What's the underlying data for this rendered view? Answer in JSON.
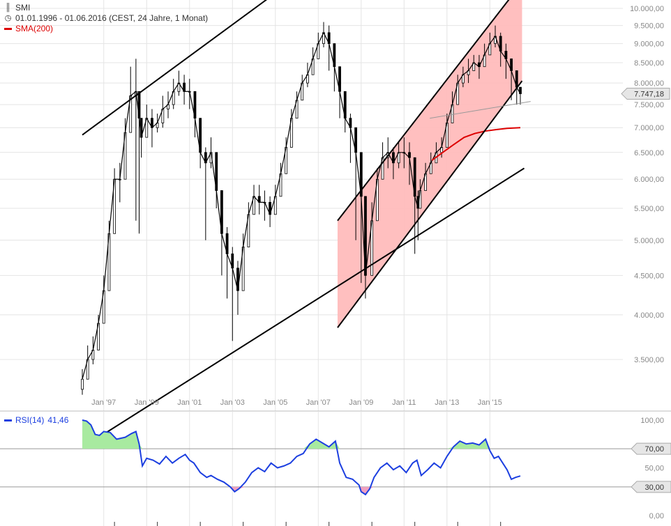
{
  "legend": {
    "symbol": "SMI",
    "range": "01.01.1996 - 01.06.2016 (CEST, 24 Jahre, 1 Monat)",
    "sma_label": "SMA(200)",
    "rsi_label": "RSI(14)",
    "rsi_value": "41,46"
  },
  "icons": {
    "candles": "candlestick-icon",
    "clock": "clock-icon"
  },
  "colors": {
    "candle": "#000000",
    "sma": "#dd0000",
    "rsi": "#1c3fe0",
    "channel_fill": "#ffbcbc",
    "rsi_overbought_fill": "#a8eaa0",
    "rsi_oversold_fill": "#f0a0c0",
    "grid": "#e4e4e4",
    "axis_text": "#888888"
  },
  "chart_data": [
    {
      "type": "candlestick",
      "title": "SMI",
      "scale": "log",
      "ylim": [
        3150,
        10150
      ],
      "xlim": [
        1996.0,
        2016.5
      ],
      "y_ticks": [
        3500,
        4000,
        4500,
        5000,
        5500,
        6000,
        6500,
        7000,
        7500,
        8000,
        8500,
        9000,
        9500,
        10000
      ],
      "y_tick_labels": [
        "3.500,00",
        "4.000,00",
        "4.500,00",
        "5.000,00",
        "5.500,00",
        "6.000,00",
        "6.500,00",
        "7.000,00",
        "7.500,00",
        "8.000,00",
        "8.500,00",
        "9.000,00",
        "9.500,00",
        "10.000,00"
      ],
      "x_ticks": [
        1997,
        1999,
        2001,
        2003,
        2005,
        2007,
        2009,
        2011,
        2013,
        2015
      ],
      "x_tick_labels": [
        "Jan '97",
        "Jan '99",
        "Jan '01",
        "Jan '03",
        "Jan '05",
        "Jan '07",
        "Jan '09",
        "Jan '11",
        "Jan '13",
        "Jan '15"
      ],
      "last_value": 7747.18,
      "last_value_label": "7.747,18",
      "series": [
        {
          "kind": "candles",
          "x": [
            1996.0,
            1996.25,
            1996.5,
            1996.75,
            1997.0,
            1997.25,
            1997.5,
            1997.75,
            1998.0,
            1998.25,
            1998.5,
            1998.65,
            1998.75,
            1999.0,
            1999.25,
            1999.5,
            1999.75,
            2000.0,
            2000.25,
            2000.5,
            2000.75,
            2001.0,
            2001.25,
            2001.5,
            2001.75,
            2002.0,
            2002.25,
            2002.5,
            2002.75,
            2003.0,
            2003.25,
            2003.5,
            2003.75,
            2004.0,
            2004.25,
            2004.5,
            2004.75,
            2005.0,
            2005.25,
            2005.5,
            2005.75,
            2006.0,
            2006.25,
            2006.5,
            2006.75,
            2007.0,
            2007.25,
            2007.5,
            2007.75,
            2008.0,
            2008.25,
            2008.5,
            2008.75,
            2009.0,
            2009.2,
            2009.5,
            2009.75,
            2010.0,
            2010.25,
            2010.5,
            2010.75,
            2011.0,
            2011.25,
            2011.5,
            2011.65,
            2011.75,
            2012.0,
            2012.25,
            2012.5,
            2012.75,
            2013.0,
            2013.25,
            2013.5,
            2013.75,
            2014.0,
            2014.25,
            2014.5,
            2014.75,
            2015.0,
            2015.25,
            2015.5,
            2015.75,
            2016.0,
            2016.25,
            2016.42
          ],
          "close": [
            3300,
            3500,
            3600,
            3900,
            4300,
            5100,
            6000,
            6000,
            6900,
            7700,
            7800,
            7200,
            6800,
            7200,
            7000,
            7100,
            7400,
            7500,
            7800,
            8000,
            7800,
            7800,
            7200,
            6500,
            6300,
            6500,
            5800,
            5100,
            4800,
            4600,
            4300,
            4900,
            5400,
            5700,
            5600,
            5600,
            5400,
            5700,
            6100,
            6600,
            7200,
            7600,
            8000,
            8200,
            8600,
            9000,
            9300,
            9000,
            8400,
            7800,
            7200,
            7000,
            6500,
            5700,
            4500,
            5300,
            6000,
            6400,
            6500,
            6300,
            6500,
            6500,
            6400,
            5700,
            5500,
            5800,
            6100,
            6300,
            6500,
            6600,
            7100,
            7500,
            8000,
            8200,
            8300,
            8500,
            8400,
            8700,
            9000,
            9200,
            8800,
            8600,
            8300,
            7900,
            7747
          ],
          "high": [
            3400,
            3650,
            3750,
            4000,
            4500,
            5300,
            6200,
            6300,
            7200,
            8400,
            8600,
            7500,
            7200,
            7500,
            7400,
            7300,
            7700,
            7800,
            8100,
            8300,
            8200,
            8100,
            7500,
            6800,
            6600,
            6800,
            6300,
            5400,
            5200,
            4900,
            4700,
            5100,
            5600,
            5900,
            5900,
            5800,
            5700,
            5900,
            6300,
            6800,
            7400,
            7800,
            8200,
            8500,
            8900,
            9300,
            9600,
            9500,
            8800,
            8200,
            7600,
            7300,
            6800,
            6000,
            5000,
            5600,
            6200,
            6700,
            6800,
            6600,
            6700,
            6800,
            6700,
            6200,
            5800,
            6000,
            6300,
            6500,
            6700,
            6800,
            7300,
            7800,
            8200,
            8400,
            8600,
            8700,
            8700,
            9000,
            9300,
            9500,
            9300,
            9000,
            8600,
            8200,
            7900
          ],
          "low": [
            3150,
            3350,
            3450,
            3700,
            4100,
            4900,
            5700,
            5600,
            6500,
            7100,
            5300,
            5100,
            6400,
            6800,
            6600,
            6900,
            7000,
            7200,
            7400,
            7700,
            7500,
            7400,
            6800,
            6200,
            5000,
            6200,
            5500,
            4500,
            4200,
            3700,
            4000,
            4600,
            5100,
            5400,
            5400,
            5300,
            5200,
            5500,
            5900,
            6400,
            6900,
            7300,
            7700,
            7900,
            8300,
            8700,
            8900,
            8300,
            7800,
            7200,
            6900,
            6300,
            5000,
            4400,
            4200,
            4900,
            5700,
            6100,
            6200,
            6000,
            6200,
            6200,
            5900,
            4800,
            5000,
            5600,
            5900,
            6100,
            6300,
            6400,
            6900,
            7200,
            7800,
            7900,
            8000,
            8300,
            8100,
            8400,
            8700,
            8900,
            8400,
            8100,
            7600,
            7500,
            7500
          ]
        },
        {
          "kind": "line",
          "name": "SMA(200)",
          "x": [
            2012.3,
            2012.8,
            2013.3,
            2013.8,
            2014.3,
            2014.8,
            2015.3,
            2015.8,
            2016.42
          ],
          "y": [
            6350,
            6500,
            6650,
            6800,
            6880,
            6930,
            6960,
            6985,
            7000
          ]
        }
      ],
      "annotations": [
        {
          "kind": "trendline",
          "from": [
            1996.0,
            6850
          ],
          "to": [
            2007.0,
            11500
          ]
        },
        {
          "kind": "trendline",
          "from": [
            1997.0,
            2800
          ],
          "to": [
            2016.6,
            6200
          ]
        },
        {
          "kind": "channel",
          "upper_from": [
            2007.9,
            5300
          ],
          "upper_to": [
            2016.5,
            10800
          ],
          "lower_from": [
            2007.9,
            3850
          ],
          "lower_to": [
            2016.5,
            8050
          ]
        },
        {
          "kind": "trendline",
          "from": [
            2012.2,
            7200
          ],
          "to": [
            2016.9,
            7570
          ]
        }
      ]
    },
    {
      "type": "line",
      "title": "RSI(14)",
      "last_value": 41.46,
      "ylim": [
        0,
        100
      ],
      "y_ticks": [
        0,
        50,
        100
      ],
      "y_tick_labels": [
        "0,00",
        "50,00",
        "100,00"
      ],
      "reference_lines": [
        70,
        30
      ],
      "reference_labels": [
        "70,00",
        "30,00"
      ],
      "x": [
        1996.0,
        1996.2,
        1996.4,
        1996.6,
        1996.8,
        1997.0,
        1997.3,
        1997.6,
        1998.0,
        1998.3,
        1998.5,
        1998.65,
        1998.8,
        1999.0,
        1999.3,
        1999.6,
        1999.9,
        2000.2,
        2000.5,
        2000.8,
        2001.0,
        2001.2,
        2001.5,
        2001.8,
        2002.0,
        2002.3,
        2002.6,
        2002.9,
        2003.1,
        2003.3,
        2003.6,
        2003.9,
        2004.2,
        2004.5,
        2004.8,
        2005.1,
        2005.4,
        2005.7,
        2006.0,
        2006.3,
        2006.6,
        2006.9,
        2007.2,
        2007.5,
        2007.8,
        2008.0,
        2008.3,
        2008.6,
        2008.9,
        2009.0,
        2009.2,
        2009.4,
        2009.6,
        2009.9,
        2010.2,
        2010.5,
        2010.8,
        2011.1,
        2011.4,
        2011.6,
        2011.8,
        2012.1,
        2012.4,
        2012.7,
        2013.0,
        2013.3,
        2013.6,
        2013.9,
        2014.2,
        2014.5,
        2014.8,
        2015.0,
        2015.2,
        2015.4,
        2015.6,
        2015.8,
        2016.0,
        2016.2,
        2016.42
      ],
      "y": [
        100,
        99,
        95,
        85,
        84,
        88,
        87,
        80,
        82,
        86,
        88,
        75,
        52,
        60,
        58,
        54,
        62,
        55,
        60,
        64,
        58,
        55,
        45,
        40,
        42,
        38,
        35,
        30,
        25,
        28,
        35,
        45,
        50,
        46,
        55,
        50,
        52,
        55,
        62,
        65,
        75,
        80,
        76,
        72,
        78,
        55,
        40,
        38,
        32,
        25,
        22,
        28,
        40,
        50,
        55,
        48,
        52,
        45,
        55,
        58,
        42,
        48,
        55,
        50,
        62,
        72,
        78,
        75,
        76,
        74,
        80,
        68,
        60,
        62,
        55,
        48,
        38,
        40,
        41.46
      ]
    }
  ]
}
